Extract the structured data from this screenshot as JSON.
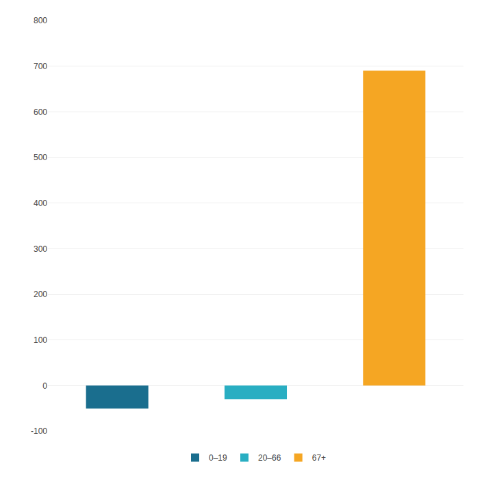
{
  "chart_data": {
    "type": "bar",
    "categories": [
      "0–19",
      "20–66",
      "67+"
    ],
    "values": [
      -50,
      -30,
      690
    ],
    "colors": [
      "#1a6e8e",
      "#29aec2",
      "#f5a623"
    ],
    "ylim": [
      -100,
      800
    ],
    "yticks": [
      -100,
      0,
      100,
      200,
      300,
      400,
      500,
      600,
      700,
      800
    ],
    "grid": true,
    "legend": "bottom",
    "tick_labels": "y"
  }
}
